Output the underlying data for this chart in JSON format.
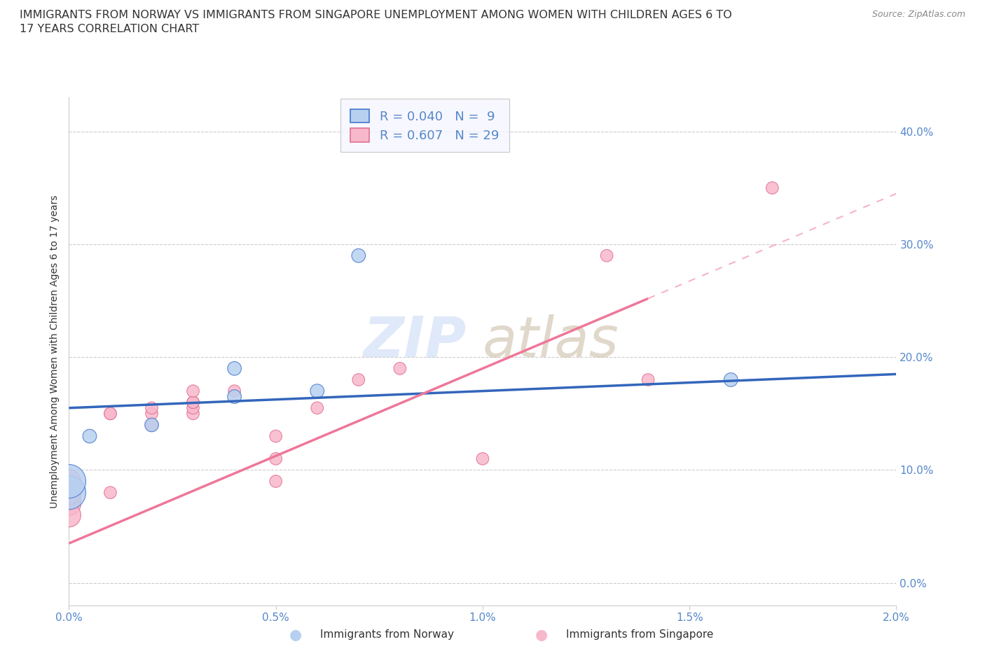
{
  "title_line1": "IMMIGRANTS FROM NORWAY VS IMMIGRANTS FROM SINGAPORE UNEMPLOYMENT AMONG WOMEN WITH CHILDREN AGES 6 TO",
  "title_line2": "17 YEARS CORRELATION CHART",
  "source": "Source: ZipAtlas.com",
  "ylabel": "Unemployment Among Women with Children Ages 6 to 17 years",
  "xlim": [
    0.0,
    0.02
  ],
  "ylim": [
    -0.02,
    0.43
  ],
  "norway_R": 0.04,
  "norway_N": 9,
  "singapore_R": 0.607,
  "singapore_N": 29,
  "norway_color": "#b8d0f0",
  "singapore_color": "#f8b8cc",
  "norway_edge_color": "#4477cc",
  "singapore_edge_color": "#e07090",
  "norway_line_color": "#3366bb",
  "singapore_line_color": "#ee7799",
  "norway_x": [
    0.0,
    0.0,
    0.0005,
    0.002,
    0.004,
    0.004,
    0.006,
    0.007,
    0.016
  ],
  "norway_y": [
    0.08,
    0.09,
    0.13,
    0.14,
    0.165,
    0.19,
    0.17,
    0.29,
    0.18
  ],
  "singapore_x": [
    0.0,
    0.0,
    0.0,
    0.0,
    0.0,
    0.0,
    0.001,
    0.001,
    0.001,
    0.002,
    0.002,
    0.002,
    0.002,
    0.003,
    0.003,
    0.003,
    0.003,
    0.003,
    0.004,
    0.005,
    0.005,
    0.005,
    0.006,
    0.007,
    0.008,
    0.01,
    0.013,
    0.014,
    0.017
  ],
  "singapore_y": [
    0.07,
    0.075,
    0.08,
    0.09,
    0.06,
    0.08,
    0.08,
    0.15,
    0.15,
    0.14,
    0.14,
    0.15,
    0.155,
    0.15,
    0.155,
    0.16,
    0.16,
    0.17,
    0.17,
    0.09,
    0.11,
    0.13,
    0.155,
    0.18,
    0.19,
    0.11,
    0.29,
    0.18,
    0.35
  ],
  "watermark_zip": "ZIP",
  "watermark_atlas": "atlas",
  "background_color": "#ffffff",
  "grid_color": "#cccccc",
  "tick_label_color": "#5588cc",
  "title_color": "#333333",
  "legend_norway_label": "R = 0.040   N =  9",
  "legend_singapore_label": "R = 0.607   N = 29",
  "norway_line_intercept": 0.155,
  "norway_line_slope": 1.5,
  "singapore_line_intercept": 0.035,
  "singapore_line_slope": 15.5
}
